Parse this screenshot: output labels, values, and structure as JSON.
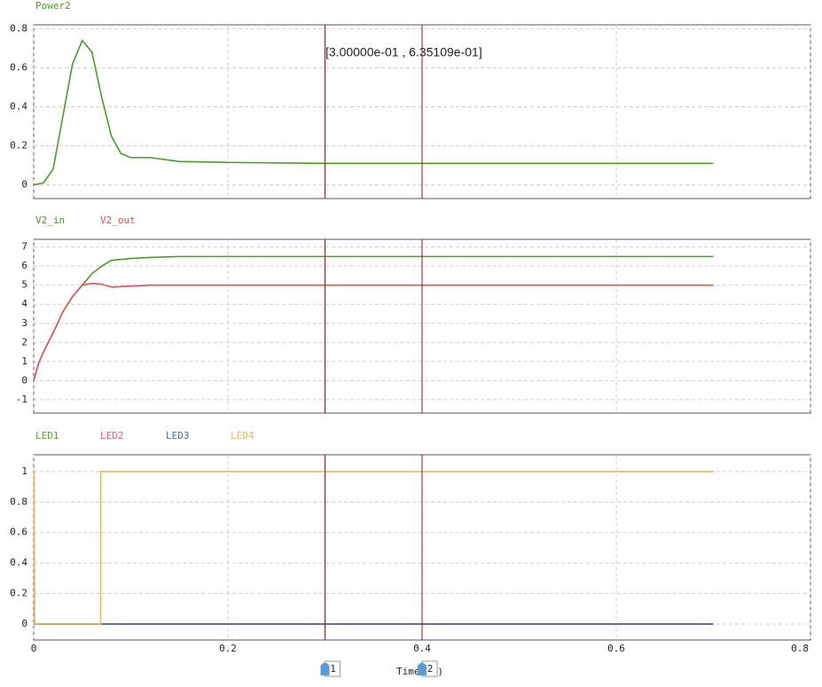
{
  "x_axis": {
    "label": "Time (s)",
    "xlim": [
      0,
      0.8
    ],
    "xticks": [
      0,
      0.2,
      0.4,
      0.6,
      0.8
    ]
  },
  "cursors": {
    "values": [
      0.3,
      0.4
    ],
    "labels": [
      "1",
      "2"
    ],
    "color": "#a01010"
  },
  "readout": "[3.00000e-01 , 6.35109e-01]",
  "chart_data": [
    {
      "type": "line",
      "grid": true,
      "ylim": [
        -0.07,
        0.82
      ],
      "yticks": [
        0,
        0.2,
        0.4,
        0.6,
        0.8
      ],
      "x": [
        0,
        0.01,
        0.02,
        0.03,
        0.04,
        0.05,
        0.06,
        0.07,
        0.08,
        0.09,
        0.1,
        0.12,
        0.15,
        0.2,
        0.3,
        0.4,
        0.5,
        0.6,
        0.7
      ],
      "series": [
        {
          "name": "Power2",
          "color": "#4c9a2a",
          "values": [
            0,
            0.01,
            0.08,
            0.35,
            0.62,
            0.74,
            0.68,
            0.45,
            0.25,
            0.16,
            0.14,
            0.14,
            0.12,
            0.115,
            0.11,
            0.11,
            0.11,
            0.11,
            0.11
          ]
        }
      ]
    },
    {
      "type": "line",
      "grid": true,
      "ylim": [
        -1.7,
        7.4
      ],
      "yticks": [
        -1,
        0,
        1,
        2,
        3,
        4,
        5,
        6,
        7
      ],
      "x": [
        0,
        0.005,
        0.01,
        0.02,
        0.03,
        0.04,
        0.05,
        0.06,
        0.07,
        0.08,
        0.1,
        0.12,
        0.15,
        0.2,
        0.3,
        0.4,
        0.5,
        0.6,
        0.7
      ],
      "series": [
        {
          "name": "V2_in",
          "color": "#4c9a2a",
          "values": [
            0,
            0.9,
            1.5,
            2.5,
            3.6,
            4.4,
            5.0,
            5.6,
            6.0,
            6.3,
            6.4,
            6.45,
            6.5,
            6.5,
            6.5,
            6.5,
            6.5,
            6.5,
            6.5
          ]
        },
        {
          "name": "V2_out",
          "color": "#d9535a",
          "values": [
            0,
            0.9,
            1.5,
            2.5,
            3.6,
            4.4,
            5.0,
            5.1,
            5.05,
            4.9,
            4.95,
            5,
            5,
            5,
            5,
            5,
            5,
            5,
            5
          ]
        }
      ]
    },
    {
      "type": "line",
      "grid": true,
      "ylim": [
        -0.105,
        1.11
      ],
      "yticks": [
        0,
        0.2,
        0.4,
        0.6,
        0.8,
        1
      ],
      "x": [
        0,
        0.0005,
        0.001,
        0.069,
        0.0691,
        0.7
      ],
      "series": [
        {
          "name": "LED1",
          "color": "#5aa02c",
          "values": [
            0,
            0,
            0,
            0,
            0,
            0
          ]
        },
        {
          "name": "LED2",
          "color": "#e06070",
          "values": [
            0,
            0,
            0,
            0,
            0,
            0
          ]
        },
        {
          "name": "LED3",
          "color": "#4a6aa0",
          "values": [
            0,
            0,
            0,
            0,
            0,
            0
          ]
        },
        {
          "name": "LED4",
          "color": "#e8b860",
          "values": [
            1,
            1,
            0,
            0,
            1,
            1
          ]
        }
      ]
    }
  ]
}
